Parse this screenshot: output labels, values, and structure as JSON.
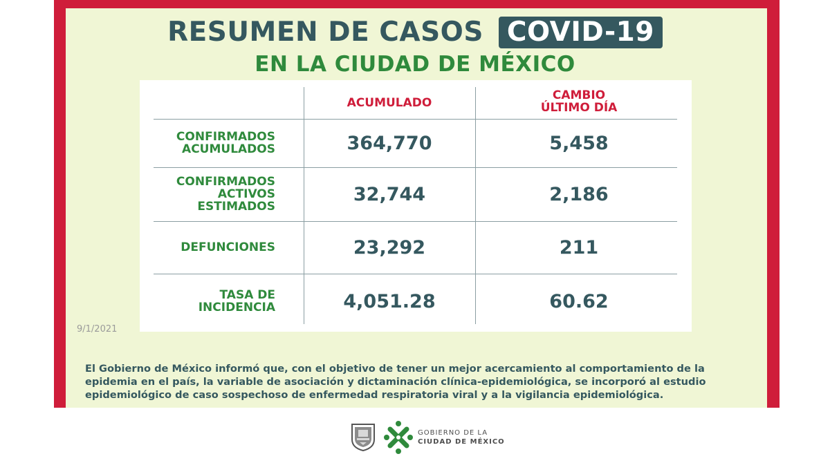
{
  "header": {
    "title": "RESUMEN DE CASOS",
    "badge": "COVID-19",
    "subtitle": "EN LA CIUDAD DE MÉXICO"
  },
  "table": {
    "col_acumulado": "ACUMULADO",
    "col_cambio_1": "CAMBIO",
    "col_cambio_2": "ÚLTIMO DÍA",
    "rows": [
      {
        "label_1": "CONFIRMADOS",
        "label_2": "ACUMULADOS",
        "acumulado": "364,770",
        "cambio": "5,458"
      },
      {
        "label_1": "CONFIRMADOS",
        "label_2": "ACTIVOS",
        "label_3": "ESTIMADOS",
        "acumulado": "32,744",
        "cambio": "2,186"
      },
      {
        "label_1": "DEFUNCIONES",
        "acumulado": "23,292",
        "cambio": "211"
      },
      {
        "label_1": "TASA DE",
        "label_2": "INCIDENCIA",
        "acumulado": "4,051.28",
        "cambio": "60.62"
      }
    ]
  },
  "date": "9/1/2021",
  "note": "El Gobierno de México informó que, con el objetivo de tener un mejor acercamiento al comportamiento de la epidemia en el país, la variable de asociación y dictaminación clínica-epidemiológica, se incorporó al estudio epidemiológico de caso sospechoso de enfermedad respiratoria viral y a la vigilancia epidemiológica.",
  "footer": {
    "gov_line1": "GOBIERNO DE LA",
    "gov_line2": "CIUDAD DE MÉXICO"
  },
  "colors": {
    "frame": "#cf1d3a",
    "panel": "#f0f6d5",
    "title": "#35585f",
    "green": "#2f8a3c"
  },
  "icons": [
    "coat-of-arms-icon",
    "cdmx-logo-icon"
  ]
}
